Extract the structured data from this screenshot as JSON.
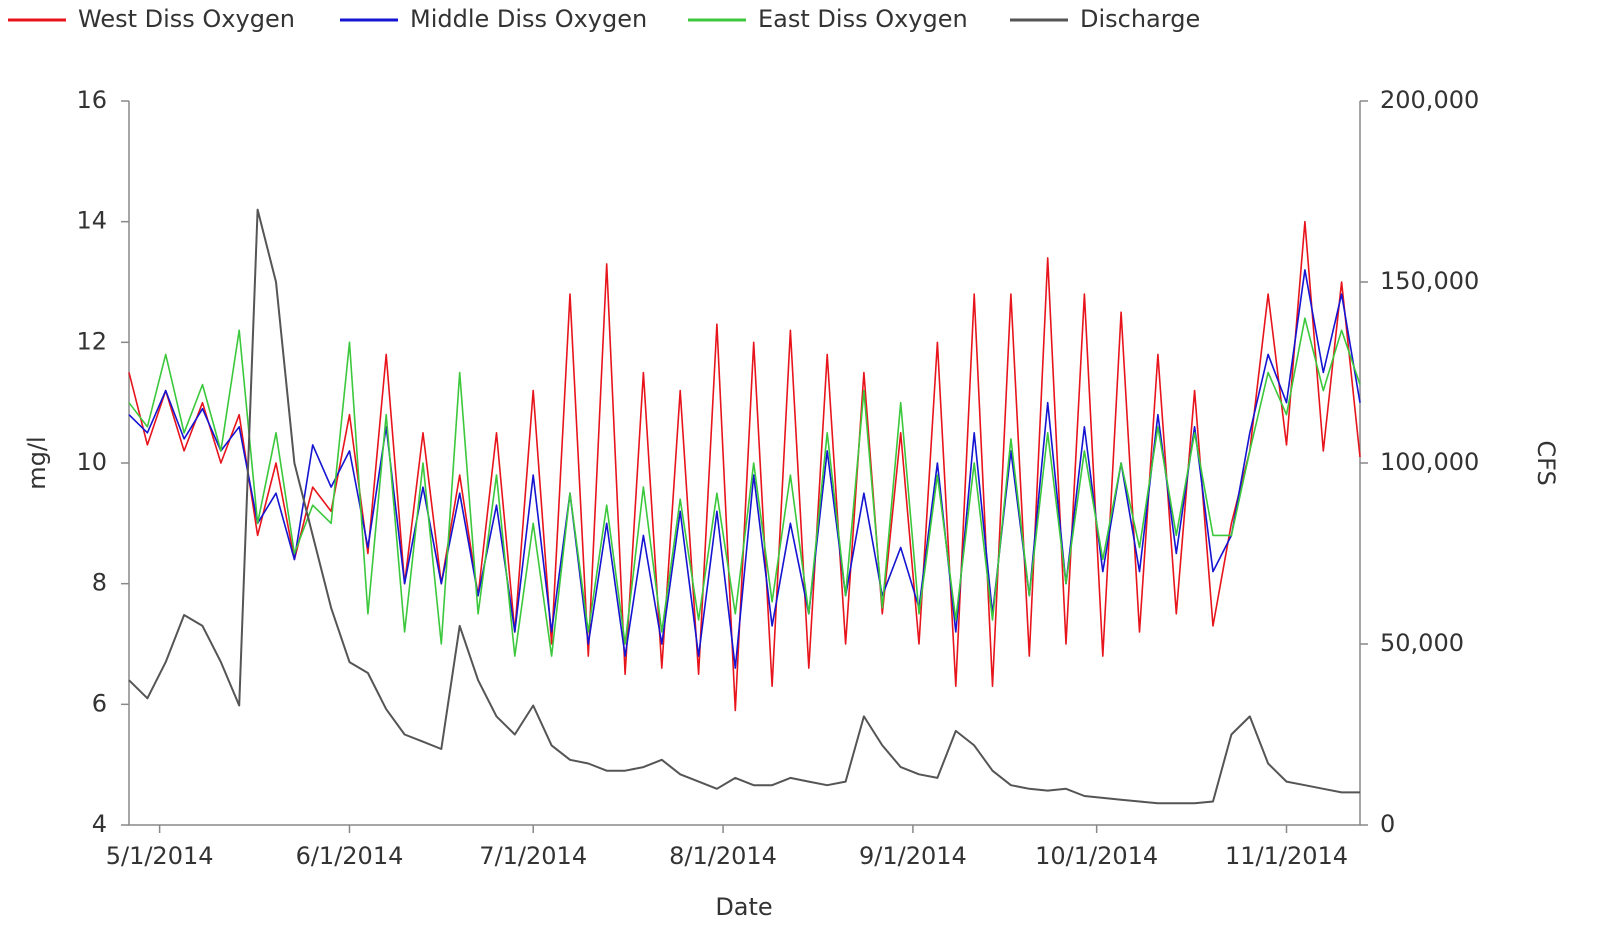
{
  "chart_data": {
    "type": "line",
    "x_label": "Date",
    "y_label": "mg/l",
    "y2_label": "CFS",
    "x": [
      "4/26/2014",
      "4/29/2014",
      "5/2/2014",
      "5/5/2014",
      "5/8/2014",
      "5/11/2014",
      "5/14/2014",
      "5/17/2014",
      "5/20/2014",
      "5/23/2014",
      "5/26/2014",
      "5/29/2014",
      "6/1/2014",
      "6/4/2014",
      "6/7/2014",
      "6/10/2014",
      "6/13/2014",
      "6/16/2014",
      "6/19/2014",
      "6/22/2014",
      "6/25/2014",
      "6/28/2014",
      "7/1/2014",
      "7/4/2014",
      "7/7/2014",
      "7/10/2014",
      "7/13/2014",
      "7/16/2014",
      "7/19/2014",
      "7/22/2014",
      "7/25/2014",
      "7/28/2014",
      "7/31/2014",
      "8/3/2014",
      "8/6/2014",
      "8/9/2014",
      "8/12/2014",
      "8/15/2014",
      "8/18/2014",
      "8/21/2014",
      "8/24/2014",
      "8/27/2014",
      "8/30/2014",
      "9/2/2014",
      "9/5/2014",
      "9/8/2014",
      "9/11/2014",
      "9/14/2014",
      "9/17/2014",
      "9/20/2014",
      "9/23/2014",
      "9/26/2014",
      "9/29/2014",
      "10/2/2014",
      "10/5/2014",
      "10/8/2014",
      "10/11/2014",
      "10/14/2014",
      "10/17/2014",
      "10/20/2014",
      "10/23/2014",
      "10/26/2014",
      "10/29/2014",
      "11/1/2014",
      "11/4/2014",
      "11/7/2014",
      "11/10/2014",
      "11/13/2014"
    ],
    "series": [
      {
        "name": "West Diss Oxygen",
        "color": "#e8141c",
        "values": [
          11.5,
          10.3,
          11.2,
          10.2,
          11.0,
          10.0,
          10.8,
          8.8,
          10.0,
          8.4,
          9.6,
          9.2,
          10.8,
          8.5,
          11.8,
          8.0,
          10.5,
          8.0,
          9.8,
          7.8,
          10.5,
          7.2,
          11.2,
          7.0,
          12.8,
          6.8,
          13.3,
          6.5,
          11.5,
          6.6,
          11.2,
          6.5,
          12.3,
          5.9,
          12.0,
          6.3,
          12.2,
          6.6,
          11.8,
          7.0,
          11.5,
          7.5,
          10.5,
          7.0,
          12.0,
          6.3,
          12.8,
          6.3,
          12.8,
          6.8,
          13.4,
          7.0,
          12.8,
          6.8,
          12.5,
          7.2,
          11.8,
          7.5,
          11.2,
          7.3,
          9.0,
          10.2,
          12.8,
          10.3,
          14.0,
          10.2,
          13.0,
          10.1
        ]
      },
      {
        "name": "Middle Diss Oxygen",
        "color": "#1414d2",
        "values": [
          10.8,
          10.5,
          11.2,
          10.4,
          10.9,
          10.2,
          10.6,
          9.0,
          9.5,
          8.4,
          10.3,
          9.6,
          10.2,
          8.6,
          10.6,
          8.0,
          9.6,
          8.0,
          9.5,
          7.8,
          9.3,
          7.2,
          9.8,
          7.2,
          9.5,
          7.0,
          9.0,
          6.8,
          8.8,
          7.0,
          9.2,
          6.8,
          9.2,
          6.6,
          9.8,
          7.3,
          9.0,
          7.5,
          10.2,
          7.8,
          9.5,
          7.8,
          8.6,
          7.6,
          10.0,
          7.2,
          10.5,
          7.5,
          10.2,
          7.8,
          11.0,
          8.0,
          10.6,
          8.2,
          10.0,
          8.2,
          10.8,
          8.5,
          10.6,
          8.2,
          8.8,
          10.5,
          11.8,
          11.0,
          13.2,
          11.5,
          12.8,
          11.0
        ]
      },
      {
        "name": "East Diss Oxygen",
        "color": "#3cc83c",
        "values": [
          11.0,
          10.6,
          11.8,
          10.5,
          11.3,
          10.2,
          12.2,
          9.0,
          10.5,
          8.5,
          9.3,
          9.0,
          12.0,
          7.5,
          10.8,
          7.2,
          10.0,
          7.0,
          11.5,
          7.5,
          9.8,
          6.8,
          9.0,
          6.8,
          9.5,
          7.2,
          9.3,
          7.0,
          9.6,
          7.2,
          9.4,
          7.4,
          9.5,
          7.5,
          10.0,
          7.7,
          9.8,
          7.5,
          10.5,
          7.8,
          11.2,
          7.6,
          11.0,
          7.5,
          9.8,
          7.4,
          10.0,
          7.4,
          10.4,
          7.8,
          10.5,
          8.0,
          10.2,
          8.4,
          10.0,
          8.6,
          10.6,
          8.8,
          10.5,
          8.8,
          8.8,
          10.2,
          11.5,
          10.8,
          12.4,
          11.2,
          12.2,
          11.3
        ]
      },
      {
        "name": "Discharge",
        "color": "#555555",
        "axis": "y2",
        "values": [
          40000,
          35000,
          45000,
          58000,
          55000,
          45000,
          33000,
          170000,
          150000,
          100000,
          80000,
          60000,
          45000,
          42000,
          32000,
          25000,
          23000,
          21000,
          55000,
          40000,
          30000,
          25000,
          33000,
          22000,
          18000,
          17000,
          15000,
          15000,
          16000,
          18000,
          14000,
          12000,
          10000,
          13000,
          11000,
          11000,
          13000,
          12000,
          11000,
          12000,
          30000,
          22000,
          16000,
          14000,
          13000,
          26000,
          22000,
          15000,
          11000,
          10000,
          9500,
          10000,
          8000,
          7500,
          7000,
          6500,
          6000,
          6000,
          6000,
          6500,
          25000,
          30000,
          17000,
          12000,
          11000,
          10000,
          9000,
          9000
        ]
      }
    ],
    "xlim": [
      "4/26/2014",
      "11/13/2014"
    ],
    "xticks": [
      "5/1/2014",
      "6/1/2014",
      "7/1/2014",
      "8/1/2014",
      "9/1/2014",
      "10/1/2014",
      "11/1/2014"
    ],
    "ylim": [
      4,
      16
    ],
    "yticks": [
      4,
      6,
      8,
      10,
      12,
      14,
      16
    ],
    "y2lim": [
      0,
      200000
    ],
    "y2ticks": [
      0,
      {
        "value": 50000,
        "label": "50,000"
      },
      {
        "value": 100000,
        "label": "100,000"
      },
      {
        "value": 150000,
        "label": "150,000"
      },
      {
        "value": 200000,
        "label": "200,000"
      }
    ],
    "grid": false,
    "legend": "top"
  }
}
